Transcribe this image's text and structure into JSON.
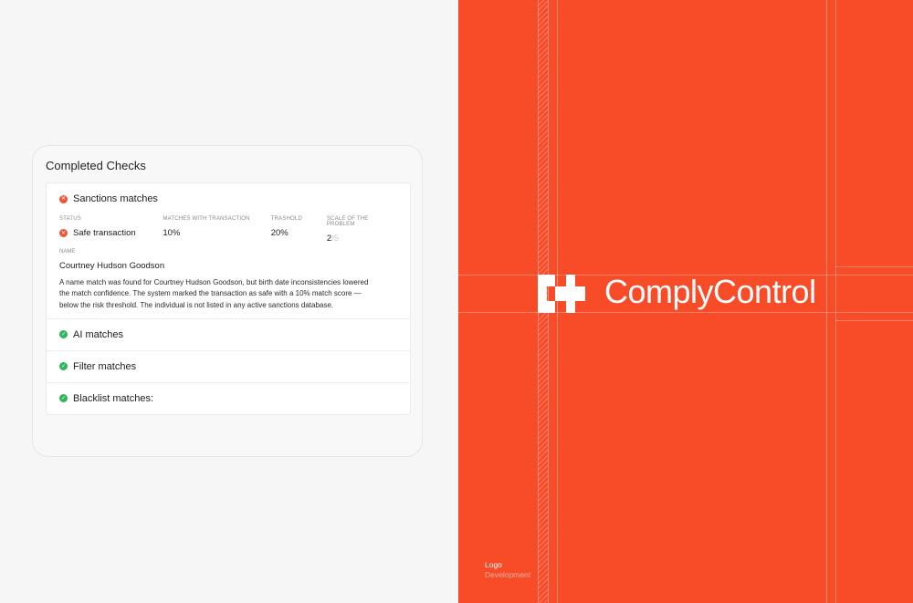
{
  "panel": {
    "title": "Completed Checks",
    "sanctions": {
      "title": "Sanctions matches",
      "status_icon": "x-circle-icon",
      "columns": [
        {
          "label": "STATUS",
          "value": "Safe transaction"
        },
        {
          "label": "MATCHES WITH TRANSACTION",
          "value": "10%"
        },
        {
          "label": "TRASHOLD",
          "value": "20%"
        },
        {
          "label": "SCALE OF THE PROBLEM",
          "value": "2",
          "value_total": "/5"
        }
      ],
      "name_label": "NAME",
      "name_value": "Courtney Hudson Goodson",
      "description": "A name match was found for Courtney Hudson Goodson, but birth date inconsistencies lowered the match confidence. The system marked the transaction as safe with a 10% match score — below the risk threshold. The individual is not listed in any active sanctions database."
    },
    "checks": [
      {
        "label": "AI matches",
        "icon": "check-circle-icon"
      },
      {
        "label": "Filter matches",
        "icon": "check-circle-icon"
      },
      {
        "label": "Blacklist matches:",
        "icon": "check-circle-icon"
      }
    ]
  },
  "brand": {
    "name": "ComplyControl",
    "caption_title": "Logo",
    "caption_sub": "Development",
    "color": "#f84b28"
  }
}
